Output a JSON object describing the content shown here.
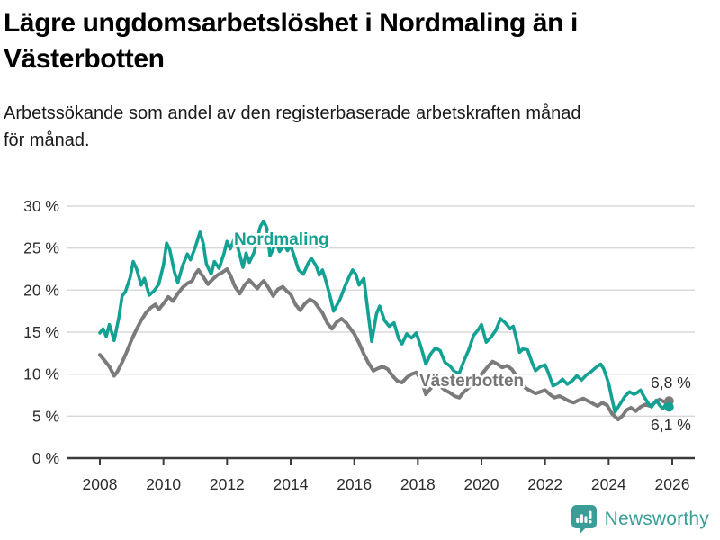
{
  "header": {
    "title_lines": [
      "Lägre ungdomsarbetslöshet i Nordmaling än i",
      "Västerbotten"
    ],
    "subtitle_lines": [
      "Arbetssökande som andel av den registerbaserade arbetskraften månad",
      "för månad."
    ]
  },
  "attribution": {
    "brand": "Newsworthy"
  },
  "colors": {
    "nordmaling_line": "#12a192",
    "vasterbotten_line": "#7b7b7b",
    "vasterbotten_label": "#757575",
    "gridline": "#d8d8d8",
    "axis_line": "#3c3c3c",
    "axis_text": "#2d2d2d",
    "title_text": "#000000",
    "brand_teal": "#3b9d98"
  },
  "chart_data": {
    "type": "line",
    "title": "Lägre ungdomsarbetslöshet i Nordmaling än i Västerbotten",
    "subtitle": "Arbetssökande som andel av den registerbaserade arbetskraften månad för månad.",
    "unit": "%",
    "grid": true,
    "legend_position": "inline-labels",
    "x_axis": {
      "range": [
        2007.6,
        2026.7
      ],
      "ticks": [
        2008,
        2010,
        2012,
        2014,
        2016,
        2018,
        2020,
        2022,
        2024,
        2026
      ]
    },
    "y_axis": {
      "range": [
        0,
        30
      ],
      "ticks": [
        {
          "value": 0,
          "label": "0 %"
        },
        {
          "value": 5,
          "label": "5 %"
        },
        {
          "value": 10,
          "label": "10 %"
        },
        {
          "value": 15,
          "label": "15 %"
        },
        {
          "value": 20,
          "label": "20 %"
        },
        {
          "value": 25,
          "label": "25 %"
        },
        {
          "value": 30,
          "label": "30 %"
        }
      ]
    },
    "series": [
      {
        "name": "Västerbotten",
        "color": "#7b7b7b",
        "end_label": "6,8 %",
        "end_value": 6.8,
        "points": [
          [
            2008.0,
            12.3
          ],
          [
            2008.15,
            11.6
          ],
          [
            2008.3,
            10.9
          ],
          [
            2008.45,
            9.8
          ],
          [
            2008.55,
            10.3
          ],
          [
            2008.7,
            11.4
          ],
          [
            2008.85,
            12.7
          ],
          [
            2009.0,
            14.1
          ],
          [
            2009.15,
            15.3
          ],
          [
            2009.3,
            16.4
          ],
          [
            2009.45,
            17.3
          ],
          [
            2009.6,
            17.9
          ],
          [
            2009.75,
            18.3
          ],
          [
            2009.85,
            17.7
          ],
          [
            2010.0,
            18.4
          ],
          [
            2010.15,
            19.2
          ],
          [
            2010.3,
            18.7
          ],
          [
            2010.45,
            19.6
          ],
          [
            2010.6,
            20.3
          ],
          [
            2010.75,
            20.8
          ],
          [
            2010.9,
            21.1
          ],
          [
            2011.0,
            21.9
          ],
          [
            2011.1,
            22.4
          ],
          [
            2011.25,
            21.6
          ],
          [
            2011.4,
            20.7
          ],
          [
            2011.55,
            21.3
          ],
          [
            2011.7,
            21.8
          ],
          [
            2011.85,
            22.1
          ],
          [
            2012.0,
            22.5
          ],
          [
            2012.1,
            21.8
          ],
          [
            2012.25,
            20.4
          ],
          [
            2012.4,
            19.6
          ],
          [
            2012.55,
            20.6
          ],
          [
            2012.7,
            21.2
          ],
          [
            2012.8,
            20.8
          ],
          [
            2012.95,
            20.2
          ],
          [
            2013.05,
            20.7
          ],
          [
            2013.15,
            21.1
          ],
          [
            2013.3,
            20.3
          ],
          [
            2013.45,
            19.3
          ],
          [
            2013.6,
            20.1
          ],
          [
            2013.75,
            20.4
          ],
          [
            2013.9,
            19.8
          ],
          [
            2014.0,
            19.5
          ],
          [
            2014.15,
            18.3
          ],
          [
            2014.3,
            17.6
          ],
          [
            2014.45,
            18.4
          ],
          [
            2014.6,
            18.9
          ],
          [
            2014.75,
            18.6
          ],
          [
            2014.9,
            17.8
          ],
          [
            2015.0,
            17.3
          ],
          [
            2015.15,
            16.1
          ],
          [
            2015.3,
            15.4
          ],
          [
            2015.45,
            16.2
          ],
          [
            2015.6,
            16.6
          ],
          [
            2015.75,
            16.1
          ],
          [
            2015.9,
            15.3
          ],
          [
            2016.0,
            14.8
          ],
          [
            2016.15,
            13.7
          ],
          [
            2016.3,
            12.4
          ],
          [
            2016.45,
            11.3
          ],
          [
            2016.6,
            10.4
          ],
          [
            2016.75,
            10.7
          ],
          [
            2016.9,
            10.9
          ],
          [
            2017.05,
            10.6
          ],
          [
            2017.2,
            9.8
          ],
          [
            2017.35,
            9.2
          ],
          [
            2017.5,
            9.0
          ],
          [
            2017.65,
            9.6
          ],
          [
            2017.8,
            10.0
          ],
          [
            2017.95,
            10.2
          ],
          [
            2018.1,
            9.4
          ],
          [
            2018.25,
            7.6
          ],
          [
            2018.4,
            8.3
          ],
          [
            2018.55,
            8.9
          ],
          [
            2018.7,
            8.6
          ],
          [
            2018.85,
            8.1
          ],
          [
            2019.0,
            7.8
          ],
          [
            2019.15,
            7.4
          ],
          [
            2019.3,
            7.2
          ],
          [
            2019.45,
            7.9
          ],
          [
            2019.6,
            8.4
          ],
          [
            2019.75,
            9.1
          ],
          [
            2019.9,
            9.6
          ],
          [
            2020.05,
            10.2
          ],
          [
            2020.2,
            10.9
          ],
          [
            2020.35,
            11.5
          ],
          [
            2020.5,
            11.2
          ],
          [
            2020.65,
            10.8
          ],
          [
            2020.8,
            11.0
          ],
          [
            2020.95,
            10.6
          ],
          [
            2021.1,
            9.8
          ],
          [
            2021.25,
            8.9
          ],
          [
            2021.4,
            8.3
          ],
          [
            2021.55,
            8.0
          ],
          [
            2021.7,
            7.7
          ],
          [
            2021.85,
            7.9
          ],
          [
            2022.0,
            8.1
          ],
          [
            2022.15,
            7.6
          ],
          [
            2022.3,
            7.2
          ],
          [
            2022.45,
            7.4
          ],
          [
            2022.6,
            7.1
          ],
          [
            2022.75,
            6.8
          ],
          [
            2022.9,
            6.6
          ],
          [
            2023.05,
            6.9
          ],
          [
            2023.2,
            7.1
          ],
          [
            2023.35,
            6.8
          ],
          [
            2023.5,
            6.5
          ],
          [
            2023.65,
            6.2
          ],
          [
            2023.8,
            6.6
          ],
          [
            2023.95,
            6.3
          ],
          [
            2024.1,
            5.3
          ],
          [
            2024.3,
            4.6
          ],
          [
            2024.45,
            5.1
          ],
          [
            2024.55,
            5.7
          ],
          [
            2024.7,
            6.0
          ],
          [
            2024.85,
            5.6
          ],
          [
            2025.0,
            6.1
          ],
          [
            2025.15,
            6.4
          ],
          [
            2025.3,
            6.2
          ],
          [
            2025.45,
            6.6
          ],
          [
            2025.6,
            7.0
          ],
          [
            2025.75,
            6.7
          ],
          [
            2025.9,
            6.8
          ]
        ]
      },
      {
        "name": "Nordmaling",
        "color": "#12a192",
        "end_label": "6,1 %",
        "end_value": 6.1,
        "points": [
          [
            2008.0,
            14.9
          ],
          [
            2008.1,
            15.4
          ],
          [
            2008.2,
            14.5
          ],
          [
            2008.3,
            15.9
          ],
          [
            2008.45,
            14.0
          ],
          [
            2008.6,
            16.8
          ],
          [
            2008.7,
            19.3
          ],
          [
            2008.8,
            19.8
          ],
          [
            2008.95,
            21.5
          ],
          [
            2009.05,
            23.4
          ],
          [
            2009.15,
            22.6
          ],
          [
            2009.3,
            20.6
          ],
          [
            2009.4,
            21.4
          ],
          [
            2009.55,
            19.4
          ],
          [
            2009.7,
            19.9
          ],
          [
            2009.85,
            20.7
          ],
          [
            2010.0,
            23.0
          ],
          [
            2010.1,
            25.6
          ],
          [
            2010.2,
            24.8
          ],
          [
            2010.35,
            22.1
          ],
          [
            2010.45,
            20.9
          ],
          [
            2010.6,
            22.9
          ],
          [
            2010.75,
            24.3
          ],
          [
            2010.85,
            23.6
          ],
          [
            2011.0,
            25.1
          ],
          [
            2011.15,
            26.9
          ],
          [
            2011.25,
            25.6
          ],
          [
            2011.35,
            23.1
          ],
          [
            2011.5,
            21.9
          ],
          [
            2011.6,
            23.4
          ],
          [
            2011.75,
            22.6
          ],
          [
            2011.9,
            24.3
          ],
          [
            2012.0,
            25.8
          ],
          [
            2012.1,
            24.9
          ],
          [
            2012.25,
            26.3
          ],
          [
            2012.4,
            24.2
          ],
          [
            2012.5,
            22.7
          ],
          [
            2012.6,
            24.4
          ],
          [
            2012.7,
            23.3
          ],
          [
            2012.85,
            24.5
          ],
          [
            2012.95,
            26.1
          ],
          [
            2013.05,
            27.6
          ],
          [
            2013.15,
            28.2
          ],
          [
            2013.25,
            27.4
          ],
          [
            2013.35,
            24.1
          ],
          [
            2013.45,
            24.9
          ],
          [
            2013.55,
            25.7
          ],
          [
            2013.65,
            24.6
          ],
          [
            2013.8,
            25.4
          ],
          [
            2013.9,
            24.7
          ],
          [
            2014.0,
            25.3
          ],
          [
            2014.1,
            24.2
          ],
          [
            2014.25,
            22.4
          ],
          [
            2014.4,
            21.9
          ],
          [
            2014.55,
            23.2
          ],
          [
            2014.65,
            23.8
          ],
          [
            2014.8,
            22.9
          ],
          [
            2014.9,
            21.8
          ],
          [
            2015.0,
            22.4
          ],
          [
            2015.1,
            21.2
          ],
          [
            2015.25,
            19.1
          ],
          [
            2015.35,
            17.5
          ],
          [
            2015.55,
            18.9
          ],
          [
            2015.7,
            20.4
          ],
          [
            2015.85,
            21.7
          ],
          [
            2015.95,
            22.4
          ],
          [
            2016.05,
            21.9
          ],
          [
            2016.15,
            20.6
          ],
          [
            2016.3,
            21.4
          ],
          [
            2016.45,
            16.8
          ],
          [
            2016.55,
            13.9
          ],
          [
            2016.7,
            17.2
          ],
          [
            2016.8,
            18.1
          ],
          [
            2016.95,
            16.4
          ],
          [
            2017.1,
            15.7
          ],
          [
            2017.25,
            16.1
          ],
          [
            2017.4,
            14.2
          ],
          [
            2017.5,
            13.6
          ],
          [
            2017.65,
            14.8
          ],
          [
            2017.8,
            14.3
          ],
          [
            2017.95,
            14.9
          ],
          [
            2018.1,
            13.2
          ],
          [
            2018.25,
            11.2
          ],
          [
            2018.4,
            12.4
          ],
          [
            2018.55,
            13.1
          ],
          [
            2018.7,
            12.8
          ],
          [
            2018.85,
            11.4
          ],
          [
            2019.0,
            11.0
          ],
          [
            2019.15,
            10.3
          ],
          [
            2019.3,
            10.1
          ],
          [
            2019.45,
            11.6
          ],
          [
            2019.6,
            12.9
          ],
          [
            2019.75,
            14.6
          ],
          [
            2019.9,
            15.3
          ],
          [
            2020.0,
            15.9
          ],
          [
            2020.15,
            13.8
          ],
          [
            2020.3,
            14.4
          ],
          [
            2020.45,
            15.2
          ],
          [
            2020.6,
            16.6
          ],
          [
            2020.75,
            16.1
          ],
          [
            2020.9,
            15.4
          ],
          [
            2021.0,
            15.7
          ],
          [
            2021.1,
            14.2
          ],
          [
            2021.2,
            12.6
          ],
          [
            2021.3,
            13.0
          ],
          [
            2021.45,
            12.9
          ],
          [
            2021.6,
            11.3
          ],
          [
            2021.7,
            10.4
          ],
          [
            2021.85,
            10.9
          ],
          [
            2022.0,
            11.1
          ],
          [
            2022.1,
            10.2
          ],
          [
            2022.25,
            8.6
          ],
          [
            2022.4,
            8.9
          ],
          [
            2022.55,
            9.4
          ],
          [
            2022.7,
            8.8
          ],
          [
            2022.85,
            9.2
          ],
          [
            2023.0,
            9.8
          ],
          [
            2023.15,
            9.3
          ],
          [
            2023.3,
            9.9
          ],
          [
            2023.45,
            10.3
          ],
          [
            2023.6,
            10.8
          ],
          [
            2023.75,
            11.2
          ],
          [
            2023.85,
            10.6
          ],
          [
            2024.0,
            8.9
          ],
          [
            2024.1,
            7.1
          ],
          [
            2024.2,
            5.5
          ],
          [
            2024.35,
            6.4
          ],
          [
            2024.5,
            7.3
          ],
          [
            2024.65,
            7.9
          ],
          [
            2024.8,
            7.6
          ],
          [
            2024.9,
            7.8
          ],
          [
            2025.0,
            8.1
          ],
          [
            2025.1,
            7.4
          ],
          [
            2025.25,
            6.5
          ],
          [
            2025.35,
            6.1
          ],
          [
            2025.5,
            6.9
          ],
          [
            2025.6,
            6.3
          ],
          [
            2025.7,
            5.9
          ],
          [
            2025.8,
            6.4
          ],
          [
            2025.9,
            6.1
          ]
        ]
      }
    ]
  }
}
